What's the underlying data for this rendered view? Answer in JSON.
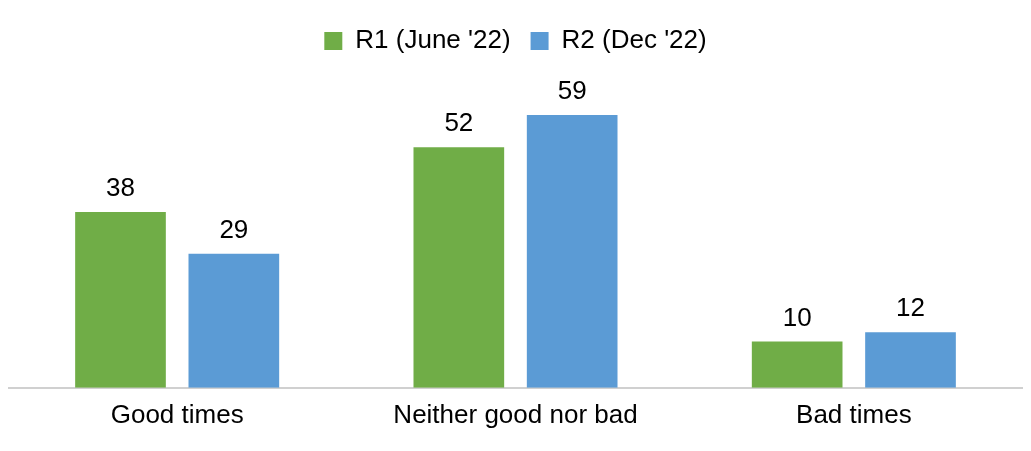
{
  "chart_data": {
    "type": "bar",
    "categories": [
      "Good times",
      "Neither good nor bad",
      "Bad times"
    ],
    "series": [
      {
        "name": "R1 (June '22)",
        "color": "#70ad47",
        "values": [
          38,
          52,
          10
        ]
      },
      {
        "name": "R2 (Dec '22)",
        "color": "#5b9bd5",
        "values": [
          29,
          59,
          12
        ]
      }
    ],
    "tick_labels": "x",
    "data_labels": true,
    "legend": "top",
    "grid": false
  }
}
